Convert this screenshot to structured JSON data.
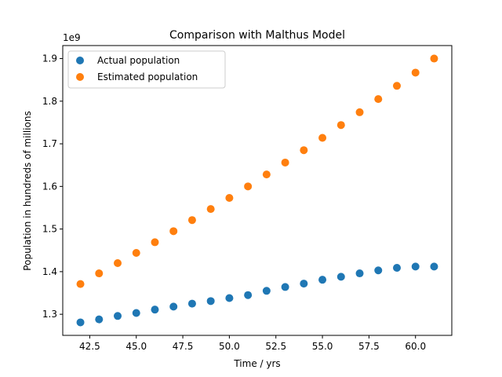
{
  "chart_data": {
    "type": "scatter",
    "title": "Comparison with Malthus Model",
    "xlabel": "Time / yrs",
    "ylabel": "Population in hundreds of millions",
    "y_offset_label": "1e9",
    "y_scale_factor": 1000000000,
    "xlim": [
      41.05,
      61.95
    ],
    "ylim": [
      1.2505,
      1.9305
    ],
    "x_ticks": [
      42.5,
      45.0,
      47.5,
      50.0,
      52.5,
      55.0,
      57.5,
      60.0
    ],
    "x_tick_labels": [
      "42.5",
      "45.0",
      "47.5",
      "50.0",
      "52.5",
      "55.0",
      "57.5",
      "60.0"
    ],
    "y_ticks": [
      1.3,
      1.4,
      1.5,
      1.6,
      1.7,
      1.8,
      1.9
    ],
    "y_tick_labels": [
      "1.3",
      "1.4",
      "1.5",
      "1.6",
      "1.7",
      "1.8",
      "1.9"
    ],
    "grid": false,
    "legend_position": "top-left",
    "x": [
      42,
      43,
      44,
      45,
      46,
      47,
      48,
      49,
      50,
      51,
      52,
      53,
      54,
      55,
      56,
      57,
      58,
      59,
      60,
      61
    ],
    "series": [
      {
        "name": "Actual population",
        "color": "#1f77b4",
        "values": [
          1.281,
          1.288,
          1.296,
          1.303,
          1.311,
          1.318,
          1.325,
          1.331,
          1.338,
          1.345,
          1.355,
          1.364,
          1.372,
          1.381,
          1.388,
          1.396,
          1.403,
          1.409,
          1.412,
          1.412
        ]
      },
      {
        "name": "Estimated population",
        "color": "#ff7f0e",
        "values": [
          1.371,
          1.396,
          1.42,
          1.444,
          1.469,
          1.495,
          1.521,
          1.547,
          1.573,
          1.6,
          1.628,
          1.656,
          1.685,
          1.714,
          1.744,
          1.774,
          1.805,
          1.836,
          1.867,
          1.9
        ]
      }
    ]
  }
}
